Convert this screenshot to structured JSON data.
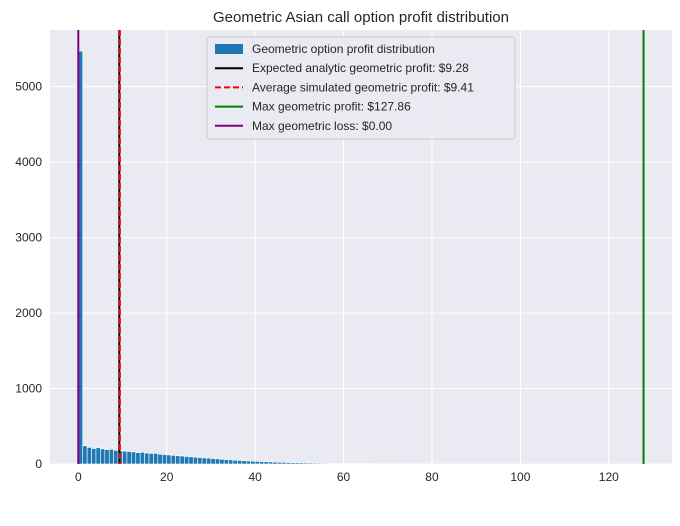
{
  "chart_data": {
    "type": "bar",
    "title": "Geometric Asian call option profit distribution",
    "xlabel": "",
    "ylabel": "",
    "xlim": [
      -6.4,
      134.3
    ],
    "ylim": [
      0,
      5750
    ],
    "xticks": [
      0,
      20,
      40,
      60,
      80,
      100,
      120
    ],
    "yticks": [
      0,
      1000,
      2000,
      3000,
      4000,
      5000
    ],
    "grid": true,
    "legend_position": "top-center",
    "bin_width": 1.0,
    "bins_start": 0,
    "bar_values": [
      5470,
      240,
      220,
      205,
      215,
      200,
      190,
      195,
      180,
      175,
      170,
      165,
      160,
      150,
      155,
      145,
      140,
      140,
      130,
      125,
      120,
      115,
      110,
      105,
      100,
      95,
      90,
      85,
      80,
      78,
      72,
      68,
      62,
      58,
      55,
      50,
      48,
      44,
      40,
      37,
      34,
      32,
      30,
      27,
      25,
      23,
      21,
      19,
      17,
      16,
      15,
      14,
      13,
      12,
      11,
      10,
      9,
      8,
      8,
      7,
      7,
      6,
      6,
      5,
      5,
      5,
      4,
      4,
      4,
      3,
      3,
      3,
      3,
      2,
      2,
      2,
      2,
      2,
      2,
      2,
      1,
      1,
      1,
      1,
      1,
      1,
      1,
      1,
      1,
      1,
      1,
      1,
      1,
      1,
      1,
      1,
      1,
      1,
      1,
      1,
      1,
      1,
      1,
      1,
      1,
      1,
      1,
      1,
      1,
      1,
      1,
      1,
      1,
      1,
      1,
      1,
      1,
      1,
      1,
      1,
      1,
      1,
      1,
      1,
      1,
      1,
      1,
      1
    ],
    "vlines": [
      {
        "label": "Expected analytic geometric profit: $9.28",
        "x": 9.28,
        "color": "#000000",
        "style": "solid"
      },
      {
        "label": "Average simulated geometric profit: $9.41",
        "x": 9.41,
        "color": "#ff0000",
        "style": "dashed"
      },
      {
        "label": "Max geometric profit: $127.86",
        "x": 127.86,
        "color": "#008000",
        "style": "solid"
      },
      {
        "label": "Max geometric loss: $0.00",
        "x": 0.0,
        "color": "#800080",
        "style": "solid"
      }
    ],
    "histogram_label": "Geometric option profit distribution",
    "histogram_color": "#1f77b4",
    "background_color": "#eaeaf2"
  }
}
